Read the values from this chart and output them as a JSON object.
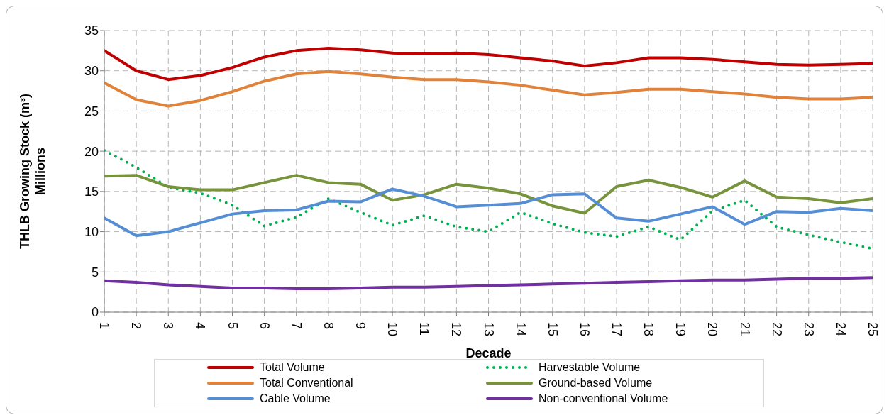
{
  "chart_data": {
    "type": "line",
    "xlabel": "Decade",
    "ylabel": "THLB  Growing Stock (m³)\nMillions",
    "categories": [
      "1",
      "2",
      "3",
      "4",
      "5",
      "6",
      "7",
      "8",
      "9",
      "10",
      "11",
      "12",
      "13",
      "14",
      "15",
      "16",
      "17",
      "18",
      "19",
      "20",
      "21",
      "22",
      "23",
      "24",
      "25"
    ],
    "ylim": [
      0,
      35
    ],
    "yticks": [
      0,
      5,
      10,
      15,
      20,
      25,
      30,
      35
    ],
    "grid": true,
    "legend": "bottom",
    "marker": "none",
    "series": [
      {
        "name": "Total Volume",
        "color": "#c00000",
        "line_style": "solid",
        "values": [
          32.5,
          30,
          28.9,
          29.4,
          30.4,
          31.7,
          32.5,
          32.8,
          32.6,
          32.2,
          32.1,
          32.2,
          32.0,
          31.6,
          31.2,
          30.6,
          31.0,
          31.6,
          31.6,
          31.4,
          31.1,
          30.8,
          30.7,
          30.8,
          30.9
        ]
      },
      {
        "name": "Harvestable Volume",
        "color": "#00b050",
        "line_style": "dotted",
        "values": [
          20.1,
          18.0,
          15.5,
          14.8,
          13.3,
          10.7,
          11.8,
          14.1,
          12.4,
          10.8,
          12.0,
          10.6,
          10.0,
          12.4,
          11.0,
          9.9,
          9.4,
          10.6,
          9.0,
          12.6,
          13.9,
          10.6,
          9.6,
          8.7,
          7.9
        ]
      },
      {
        "name": "Total Conventional",
        "color": "#e0823a",
        "line_style": "solid",
        "values": [
          28.5,
          26.4,
          25.6,
          26.3,
          27.4,
          28.7,
          29.6,
          29.9,
          29.6,
          29.2,
          28.9,
          28.9,
          28.6,
          28.2,
          27.6,
          27.0,
          27.3,
          27.7,
          27.7,
          27.4,
          27.1,
          26.7,
          26.5,
          26.5,
          26.7
        ]
      },
      {
        "name": "Ground-based Volume",
        "color": "#77933c",
        "line_style": "solid",
        "values": [
          16.9,
          17.0,
          15.6,
          15.2,
          15.2,
          16.1,
          17.0,
          16.1,
          15.9,
          13.9,
          14.6,
          15.9,
          15.4,
          14.7,
          13.2,
          12.3,
          15.6,
          16.4,
          15.5,
          14.3,
          16.3,
          14.3,
          14.1,
          13.6,
          14.1
        ]
      },
      {
        "name": "Cable Volume",
        "color": "#558ed5",
        "line_style": "solid",
        "values": [
          11.7,
          9.5,
          10.0,
          11.1,
          12.2,
          12.6,
          12.7,
          13.8,
          13.7,
          15.3,
          14.4,
          13.1,
          13.3,
          13.5,
          14.6,
          14.7,
          11.7,
          11.3,
          12.2,
          13.1,
          10.9,
          12.5,
          12.4,
          12.9,
          12.6
        ]
      },
      {
        "name": "Non-conventional Volume",
        "color": "#7030a0",
        "line_style": "solid",
        "values": [
          3.9,
          3.7,
          3.4,
          3.2,
          3.0,
          3.0,
          2.9,
          2.9,
          3.0,
          3.1,
          3.1,
          3.2,
          3.3,
          3.4,
          3.5,
          3.6,
          3.7,
          3.8,
          3.9,
          4.0,
          4.0,
          4.1,
          4.2,
          4.2,
          4.3
        ]
      }
    ]
  }
}
